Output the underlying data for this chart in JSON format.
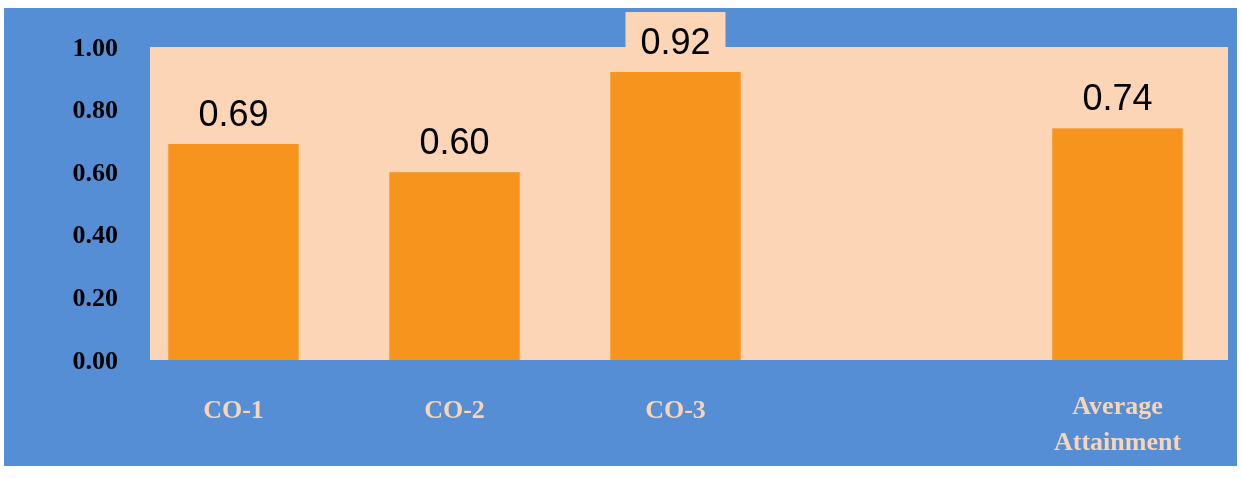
{
  "chart_data": {
    "type": "bar",
    "categories": [
      "CO-1",
      "CO-2",
      "CO-3",
      null,
      "Average Attainment"
    ],
    "values": [
      0.69,
      0.6,
      0.92,
      null,
      0.74
    ],
    "value_labels": [
      "0.69",
      "0.60",
      "0.92",
      null,
      "0.74"
    ],
    "color": "#f7941d",
    "ylim": [
      0,
      1
    ],
    "yticks": [
      {
        "value": 0,
        "label": "0.00"
      },
      {
        "value": 0.2,
        "label": "0.20"
      },
      {
        "value": 0.4,
        "label": "0.40"
      },
      {
        "value": 0.6,
        "label": "0.60"
      },
      {
        "value": 0.8,
        "label": "0.80"
      },
      {
        "value": 1,
        "label": "1.00"
      }
    ],
    "grid": false
  }
}
